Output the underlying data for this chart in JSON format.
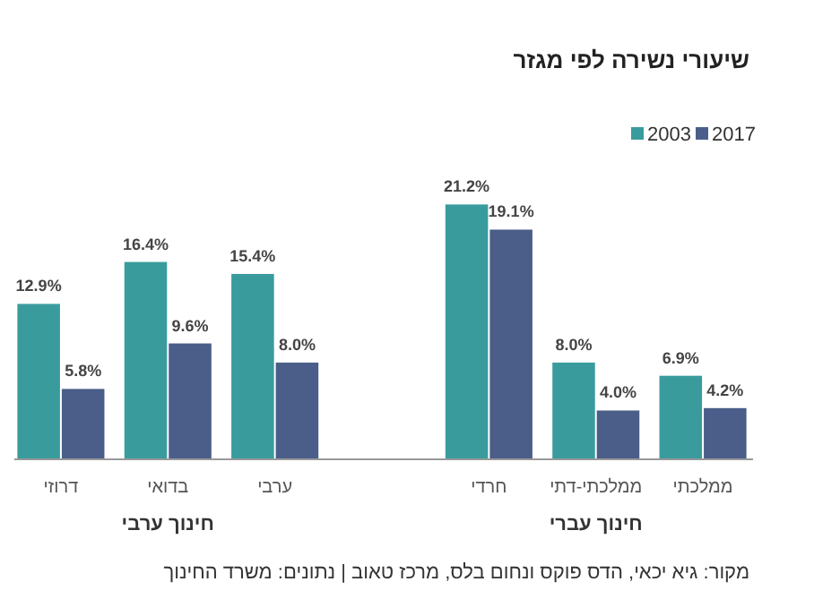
{
  "chart_data": {
    "type": "bar",
    "title": "שיעורי נשירה לפי מגזר",
    "categories": [
      "דרוזי",
      "בדואי",
      "ערבי",
      null,
      "חרדי",
      "ממלכתי-דתי",
      "ממלכתי"
    ],
    "series": [
      {
        "name": "2003",
        "color": "#3a9b9d",
        "values": [
          12.9,
          16.4,
          15.4,
          null,
          21.2,
          8.0,
          6.9
        ],
        "value_labels": [
          "12.9%",
          "16.4%",
          "15.4%",
          null,
          "21.2%",
          "8.0%",
          "6.9%"
        ]
      },
      {
        "name": "2017",
        "color": "#4a5e89",
        "values": [
          5.8,
          9.6,
          8.0,
          null,
          19.1,
          4.0,
          4.2
        ],
        "value_labels": [
          "5.8%",
          "9.6%",
          "8.0%",
          null,
          "19.1%",
          "4.0%",
          "4.2%"
        ]
      }
    ],
    "legend": "top right",
    "annotations": [
      "חינוך ערבי",
      "חינוך עברי",
      "מקור: גיא יכאי, הדס פוקס ונחום בלס, מרכז טאוב | נתונים: משרד החינוך"
    ]
  }
}
